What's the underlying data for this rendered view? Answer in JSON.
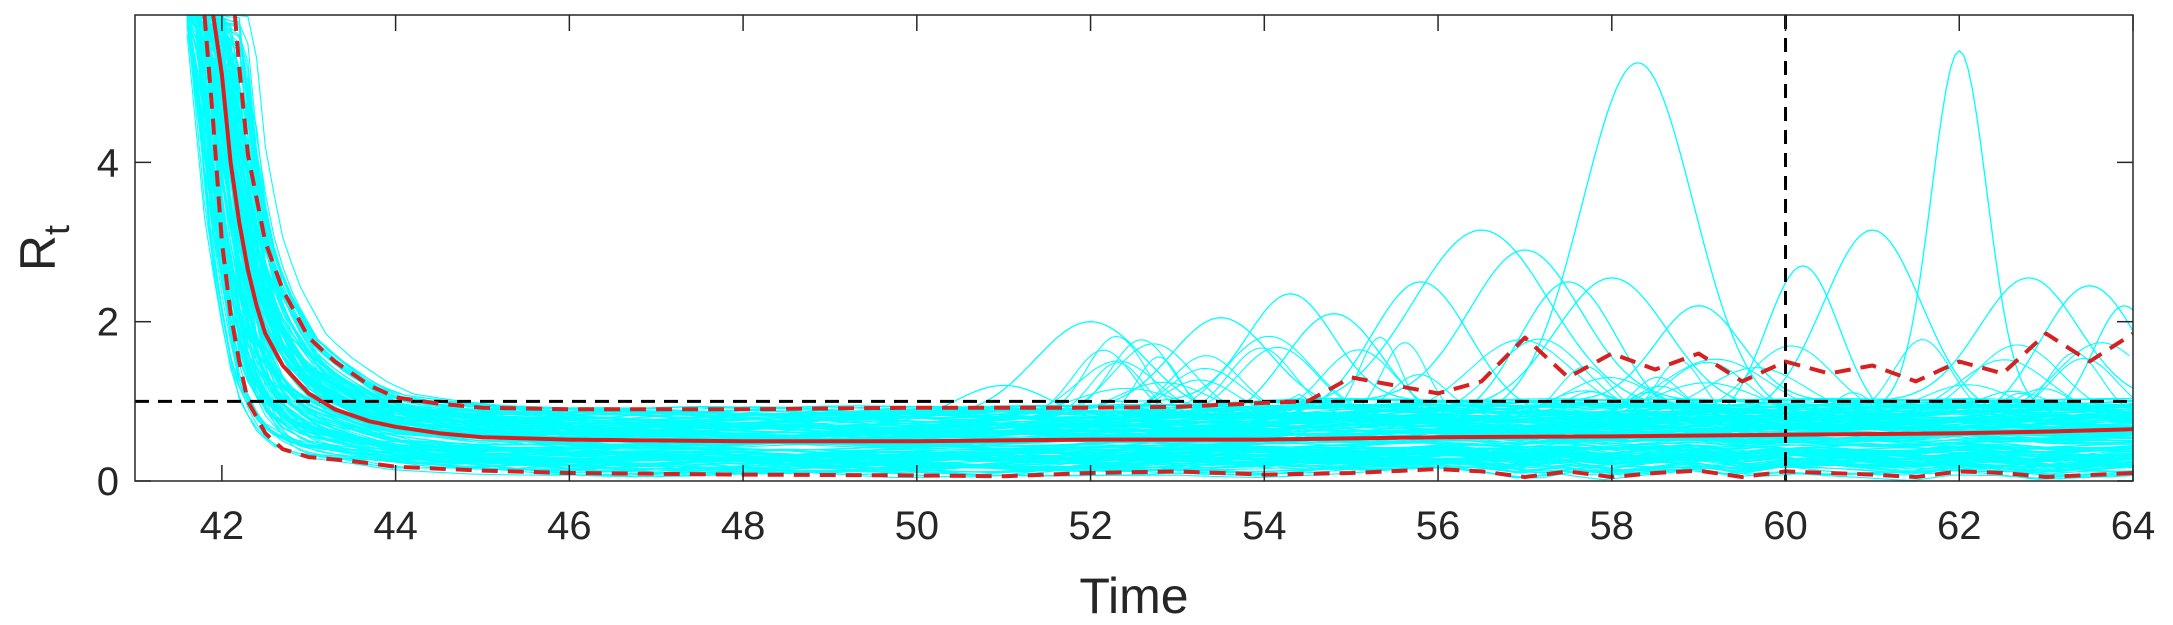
{
  "chart_data": {
    "type": "line",
    "title": "",
    "xlabel": "Time",
    "ylabel": "R",
    "ylabel_subscript": "t",
    "xlim": [
      41,
      64
    ],
    "ylim": [
      0,
      5.85
    ],
    "xticks": [
      42,
      44,
      46,
      48,
      50,
      52,
      54,
      56,
      58,
      60,
      62,
      64
    ],
    "yticks": [
      0,
      2,
      4
    ],
    "grid": false,
    "legend": "none",
    "colors": {
      "samples": "#00ffff",
      "median": "#d82020",
      "interval": "#d82020",
      "reference": "#000000",
      "axes": "#262626"
    },
    "reference_lines": {
      "horizontal_y": 1,
      "vertical_x": 60
    },
    "series": [
      {
        "role": "median",
        "style": "solid",
        "x": [
          41.9,
          42.0,
          42.1,
          42.2,
          42.3,
          42.4,
          42.5,
          42.7,
          43.0,
          43.3,
          43.7,
          44.0,
          44.5,
          45,
          46,
          48,
          50,
          52,
          54,
          56,
          58,
          60,
          62,
          63,
          64
        ],
        "y": [
          5.85,
          5.1,
          4.0,
          3.25,
          2.65,
          2.2,
          1.85,
          1.45,
          1.1,
          0.9,
          0.75,
          0.68,
          0.6,
          0.55,
          0.52,
          0.5,
          0.5,
          0.52,
          0.52,
          0.55,
          0.56,
          0.58,
          0.6,
          0.62,
          0.65
        ]
      },
      {
        "role": "upper-interval",
        "style": "dashed",
        "x": [
          42.15,
          42.2,
          42.3,
          42.5,
          42.7,
          43.0,
          43.3,
          43.7,
          44.0,
          44.5,
          45,
          46,
          48,
          50,
          52,
          53,
          54,
          54.5,
          55,
          55.5,
          56,
          56.5,
          57,
          57.5,
          58,
          58.5,
          59,
          59.5,
          60,
          60.5,
          61,
          61.5,
          62,
          62.5,
          63,
          63.5,
          64
        ],
        "y": [
          5.85,
          5.2,
          4.1,
          3.0,
          2.4,
          1.8,
          1.5,
          1.2,
          1.05,
          0.97,
          0.92,
          0.9,
          0.9,
          0.92,
          0.92,
          0.93,
          0.98,
          1.0,
          1.3,
          1.2,
          1.1,
          1.25,
          1.8,
          1.3,
          1.6,
          1.4,
          1.6,
          1.25,
          1.5,
          1.35,
          1.45,
          1.25,
          1.5,
          1.35,
          1.85,
          1.5,
          1.85
        ]
      },
      {
        "role": "lower-interval",
        "style": "dashed",
        "x": [
          41.8,
          41.9,
          42.0,
          42.1,
          42.2,
          42.3,
          42.5,
          42.7,
          43.0,
          43.5,
          44,
          45,
          46,
          48,
          50,
          51,
          52,
          53,
          54,
          55,
          56,
          56.5,
          57,
          57.5,
          58,
          58.5,
          59,
          59.5,
          60,
          61,
          61.5,
          62,
          62.5,
          63,
          64
        ],
        "y": [
          5.85,
          4.5,
          3.0,
          2.1,
          1.5,
          1.0,
          0.6,
          0.4,
          0.3,
          0.25,
          0.18,
          0.13,
          0.1,
          0.08,
          0.07,
          0.06,
          0.1,
          0.12,
          0.08,
          0.1,
          0.15,
          0.12,
          0.05,
          0.12,
          0.05,
          0.1,
          0.13,
          0.05,
          0.12,
          0.08,
          0.05,
          0.12,
          0.1,
          0.05,
          0.1
        ]
      },
      {
        "role": "sample-peaks",
        "style": "thin",
        "peaks": [
          {
            "x": 51.0,
            "y": 1.2,
            "width": 0.8
          },
          {
            "x": 52.0,
            "y": 2.0,
            "width": 0.9
          },
          {
            "x": 53.5,
            "y": 2.05,
            "width": 0.8
          },
          {
            "x": 54.3,
            "y": 2.35,
            "width": 0.7
          },
          {
            "x": 54.8,
            "y": 2.1,
            "width": 0.8
          },
          {
            "x": 55.8,
            "y": 2.5,
            "width": 0.8
          },
          {
            "x": 56.5,
            "y": 3.15,
            "width": 1.1
          },
          {
            "x": 57.0,
            "y": 2.9,
            "width": 0.9
          },
          {
            "x": 57.5,
            "y": 2.5,
            "width": 0.8
          },
          {
            "x": 58.3,
            "y": 5.25,
            "width": 0.9
          },
          {
            "x": 58.0,
            "y": 2.55,
            "width": 0.9
          },
          {
            "x": 59.0,
            "y": 2.2,
            "width": 0.7
          },
          {
            "x": 60.2,
            "y": 2.7,
            "width": 0.6
          },
          {
            "x": 61.0,
            "y": 3.15,
            "width": 0.8
          },
          {
            "x": 62.0,
            "y": 5.4,
            "width": 0.45
          },
          {
            "x": 62.8,
            "y": 2.55,
            "width": 0.8
          },
          {
            "x": 63.5,
            "y": 2.45,
            "width": 0.8
          },
          {
            "x": 63.9,
            "y": 2.2,
            "width": 0.5
          }
        ]
      }
    ]
  }
}
